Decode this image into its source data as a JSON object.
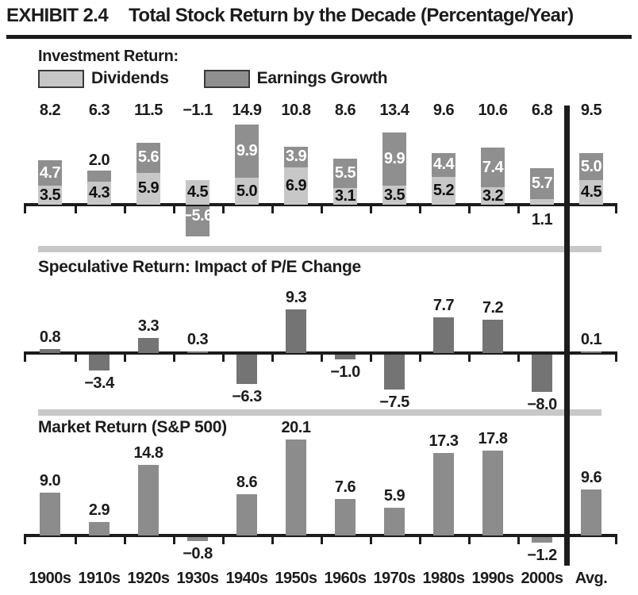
{
  "title": {
    "exhibit": "EXHIBIT 2.4",
    "main": "Total Stock Return by the Decade (Percentage/Year)"
  },
  "legend": {
    "heading": "Investment Return:",
    "items": [
      {
        "label": "Dividends",
        "swatch": "light-gray"
      },
      {
        "label": "Earnings Growth",
        "swatch": "dark-gray"
      }
    ]
  },
  "colors": {
    "dividends": "#c7c7c7",
    "earnings": "#8f8f8f",
    "speculative": "#747474",
    "market": "#8c8c8c",
    "separator": "#c8c8c8",
    "ink": "#1c1c1c",
    "label_on_dark": "#ffffff",
    "label_on_light": "#111111"
  },
  "x_labels": [
    "1900s",
    "1910s",
    "1920s",
    "1930s",
    "1940s",
    "1950s",
    "1960s",
    "1970s",
    "1980s",
    "1990s",
    "2000s",
    "Avg."
  ],
  "chart_data": [
    {
      "type": "bar",
      "stacked": true,
      "title": "Investment Return:",
      "categories": [
        "1900s",
        "1910s",
        "1920s",
        "1930s",
        "1940s",
        "1950s",
        "1960s",
        "1970s",
        "1980s",
        "1990s",
        "2000s",
        "Avg."
      ],
      "series": [
        {
          "name": "Dividends",
          "values": [
            3.5,
            4.3,
            5.9,
            4.5,
            5.0,
            6.9,
            3.1,
            3.5,
            5.2,
            3.2,
            1.1,
            4.5
          ]
        },
        {
          "name": "Earnings Growth",
          "values": [
            4.7,
            2.0,
            5.6,
            -5.6,
            9.9,
            3.9,
            5.5,
            9.9,
            4.4,
            7.4,
            5.7,
            5.0
          ]
        }
      ],
      "totals": [
        8.2,
        6.3,
        11.5,
        -1.1,
        14.9,
        10.8,
        8.6,
        13.4,
        9.6,
        10.6,
        6.8,
        9.5
      ],
      "data_labels": true,
      "grid": false
    },
    {
      "type": "bar",
      "title": "Speculative Return: Impact of P/E Change",
      "categories": [
        "1900s",
        "1910s",
        "1920s",
        "1930s",
        "1940s",
        "1950s",
        "1960s",
        "1970s",
        "1980s",
        "1990s",
        "2000s",
        "Avg."
      ],
      "values": [
        0.8,
        -3.4,
        3.3,
        0.3,
        -6.3,
        9.3,
        -1.0,
        -7.5,
        7.7,
        7.2,
        -8.0,
        0.1
      ],
      "data_labels": true,
      "grid": false
    },
    {
      "type": "bar",
      "title": "Market Return (S&P 500)",
      "categories": [
        "1900s",
        "1910s",
        "1920s",
        "1930s",
        "1940s",
        "1950s",
        "1960s",
        "1970s",
        "1980s",
        "1990s",
        "2000s",
        "Avg."
      ],
      "values": [
        9.0,
        2.9,
        14.8,
        -0.8,
        8.6,
        20.1,
        7.6,
        5.9,
        17.3,
        17.8,
        -1.2,
        9.6
      ],
      "data_labels": true,
      "grid": false
    }
  ]
}
